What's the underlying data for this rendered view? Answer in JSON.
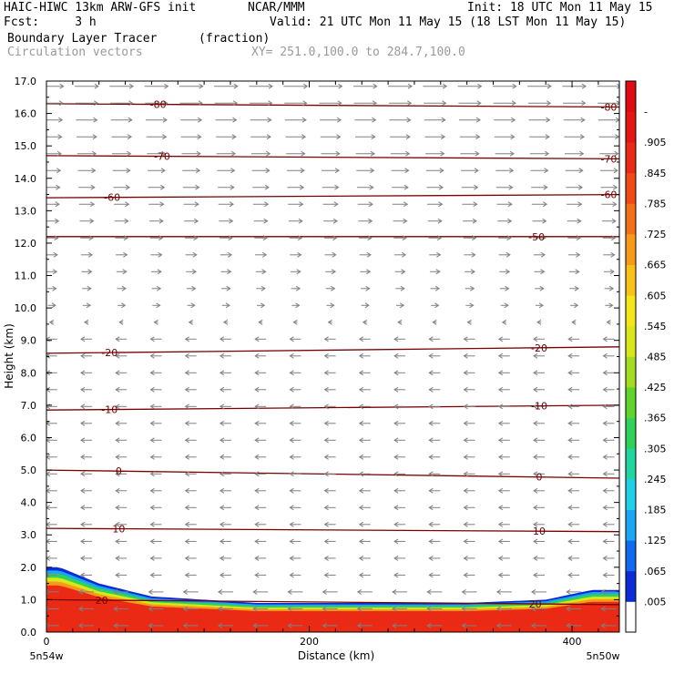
{
  "header": {
    "line1_left": "HAIC-HIWC 13km ARW-GFS init",
    "line1_mid": "NCAR/MMM",
    "line1_right": "Init: 18 UTC Mon 11 May 15",
    "line2_left": "Fcst:     3 h",
    "line2_right": "Valid: 21 UTC Mon 11 May 15 (18 LST Mon 11 May 15)",
    "line3_left": "Boundary Layer Tracer",
    "line3_mid": "(fraction)",
    "line4_left": "Circulation vectors",
    "line4_mid": "XY= 251.0,100.0 to 284.7,100.0"
  },
  "colors": {
    "contour": "#7a0000",
    "arrow": "#808080",
    "frame": "#000000"
  },
  "chart_data": {
    "type": "heatmap",
    "title": "Boundary Layer Tracer",
    "units": "(fraction)",
    "overlay": "Circulation vectors",
    "xlabel": "Distance (km)",
    "ylabel": "Height (km)",
    "xlim": [
      0,
      436
    ],
    "ylim": [
      0,
      17
    ],
    "x_ticks": [
      "0",
      "200",
      "400"
    ],
    "x_endpoints": [
      "5n54w",
      "5n50w"
    ],
    "y_ticks": [
      "0.0",
      "1.0",
      "2.0",
      "3.0",
      "4.0",
      "5.0",
      "6.0",
      "7.0",
      "8.0",
      "9.0",
      "10.0",
      "11.0",
      "12.0",
      "13.0",
      "14.0",
      "15.0",
      "16.0",
      "17.0"
    ],
    "colorbar_ticks": [
      ".005",
      ".065",
      ".125",
      ".185",
      ".245",
      ".305",
      ".365",
      ".425",
      ".485",
      ".545",
      ".605",
      ".665",
      ".725",
      ".785",
      ".845",
      ".905",
      "-"
    ],
    "colorbar_colors": [
      "#ffffff",
      "#0a2bd6",
      "#0f6af0",
      "#1aa6f5",
      "#1fd0e8",
      "#20d5a0",
      "#2ed15a",
      "#5fd42a",
      "#a3dc20",
      "#d8e61a",
      "#f5e61a",
      "#f8c21a",
      "#f79a1a",
      "#f47018",
      "#f04a16",
      "#ea2a14",
      "#e51512",
      "#e00b10"
    ],
    "tracer_profile": {
      "x": [
        0,
        10,
        40,
        80,
        120,
        160,
        200,
        260,
        320,
        380,
        415,
        436
      ],
      "top_km": [
        2.0,
        2.0,
        1.5,
        1.1,
        1.0,
        0.9,
        0.9,
        0.9,
        0.9,
        1.0,
        1.3,
        1.3
      ]
    },
    "temperature_contours": [
      {
        "label": "-80",
        "y": [
          16.3,
          16.2
        ]
      },
      {
        "label": "-70",
        "y": [
          14.7,
          14.6
        ]
      },
      {
        "label": "-60",
        "y": [
          13.4,
          13.5
        ]
      },
      {
        "label": "-50",
        "y": [
          12.2,
          12.2
        ]
      },
      {
        "label": "-20",
        "y": [
          8.6,
          8.8
        ]
      },
      {
        "label": "-10",
        "y": [
          6.85,
          7.0
        ]
      },
      {
        "label": "0",
        "y": [
          5.0,
          4.75
        ]
      },
      {
        "label": "10",
        "y": [
          3.2,
          3.1
        ]
      },
      {
        "label": "20",
        "y": [
          1.0,
          0.85
        ]
      }
    ],
    "contour_label_positions": [
      {
        "label": "-80",
        "x": [
          85,
          428
        ]
      },
      {
        "label": "-70",
        "x": [
          88,
          428
        ]
      },
      {
        "label": "-60",
        "x": [
          50,
          428
        ]
      },
      {
        "label": "-50",
        "x": [
          373
        ]
      },
      {
        "label": "-20",
        "x": [
          48,
          375
        ]
      },
      {
        "label": "-10",
        "x": [
          48,
          375
        ]
      },
      {
        "label": "0",
        "x": [
          55,
          375
        ]
      },
      {
        "label": "10",
        "x": [
          55,
          375
        ]
      },
      {
        "label": "20",
        "x": [
          42,
          372
        ]
      }
    ],
    "wind_regimes": [
      {
        "height_range_km": [
          10.0,
          17.0
        ],
        "direction": "eastward"
      },
      {
        "height_range_km": [
          0.0,
          10.0
        ],
        "direction": "westward"
      }
    ]
  }
}
